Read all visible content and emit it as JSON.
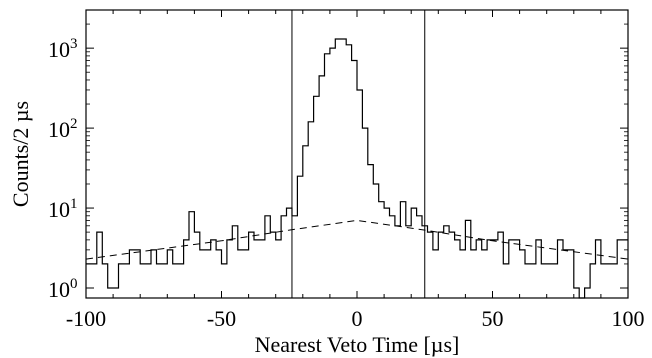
{
  "chart_data": {
    "type": "line",
    "xlabel": "Nearest Veto Time [µs]",
    "ylabel": "Counts/2 µs",
    "xlim": [
      -100,
      100
    ],
    "ylim": [
      0.75,
      3000
    ],
    "yscale": "log",
    "grid": false,
    "bin_width": 2,
    "x_ticks": [
      {
        "v": -100,
        "label": "-100"
      },
      {
        "v": -50,
        "label": "-50"
      },
      {
        "v": 0,
        "label": "0"
      },
      {
        "v": 50,
        "label": "50"
      },
      {
        "v": 100,
        "label": "100"
      }
    ],
    "y_ticks": [
      {
        "v": 1,
        "base": "10",
        "exp": "0"
      },
      {
        "v": 10,
        "base": "10",
        "exp": "1"
      },
      {
        "v": 100,
        "base": "10",
        "exp": "2"
      },
      {
        "v": 1000,
        "base": "10",
        "exp": "3"
      }
    ],
    "cut_lines": [
      -24,
      25
    ],
    "series": [
      {
        "style": "histogram",
        "bin_starts": [
          -100,
          -98,
          -96,
          -94,
          -92,
          -90,
          -88,
          -86,
          -84,
          -82,
          -80,
          -78,
          -76,
          -74,
          -72,
          -70,
          -68,
          -66,
          -64,
          -62,
          -60,
          -58,
          -56,
          -54,
          -52,
          -50,
          -48,
          -46,
          -44,
          -42,
          -40,
          -38,
          -36,
          -34,
          -32,
          -30,
          -28,
          -26,
          -24,
          -22,
          -20,
          -18,
          -16,
          -14,
          -12,
          -10,
          -8,
          -6,
          -4,
          -2,
          0,
          2,
          4,
          6,
          8,
          10,
          12,
          14,
          16,
          18,
          20,
          22,
          24,
          26,
          28,
          30,
          32,
          34,
          36,
          38,
          40,
          42,
          44,
          46,
          48,
          50,
          52,
          54,
          56,
          58,
          60,
          62,
          64,
          66,
          68,
          70,
          72,
          74,
          76,
          78,
          80,
          82,
          84,
          86,
          88,
          90,
          92,
          94,
          96,
          98
        ],
        "values": [
          2,
          2,
          5,
          2,
          1,
          1,
          2,
          2,
          3,
          3,
          2,
          2,
          3,
          2,
          2,
          3,
          2,
          2,
          4,
          9,
          5,
          3,
          3,
          4,
          3,
          2,
          4,
          6,
          3,
          3,
          5,
          4,
          4,
          8,
          5,
          4,
          8,
          10,
          8,
          25,
          60,
          120,
          250,
          450,
          850,
          1000,
          1300,
          1300,
          1100,
          700,
          300,
          100,
          35,
          20,
          12,
          10,
          8,
          6,
          12,
          6,
          10,
          8,
          6,
          5,
          3,
          5,
          6,
          5,
          4,
          3,
          7,
          3,
          4,
          3,
          4,
          4,
          5,
          2,
          4,
          4,
          3,
          2,
          2,
          4,
          2,
          2,
          2,
          4,
          3,
          3,
          1,
          0.5,
          1,
          2,
          4,
          2,
          2,
          2,
          4,
          4,
          3,
          3
        ]
      },
      {
        "style": "dashed",
        "x": [
          -100,
          -75,
          -50,
          -25,
          0,
          25,
          50,
          75,
          100
        ],
        "values": [
          2.3,
          3.0,
          3.9,
          5.3,
          7.0,
          5.3,
          3.9,
          3.0,
          2.3
        ]
      }
    ]
  }
}
